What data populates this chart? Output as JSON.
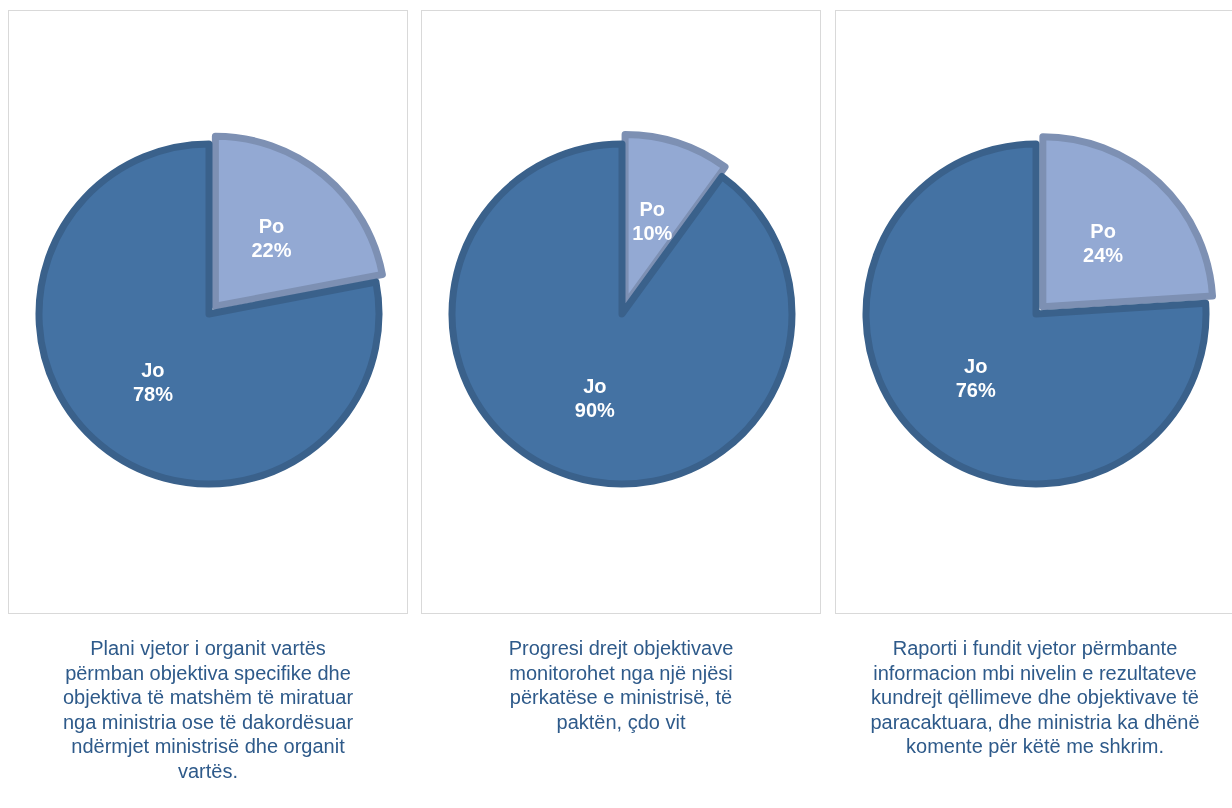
{
  "chart_data": [
    {
      "type": "pie",
      "categories": [
        "Po",
        "Jo"
      ],
      "values": [
        22,
        78
      ],
      "value_labels": [
        "22%",
        "78%"
      ],
      "colors": [
        "#93a9d3",
        "#4472a3"
      ],
      "legend": false,
      "annotations": [
        "Plani vjetor i organit vartës përmban objektiva specifike dhe objektiva të matshëm të miratuar nga ministria ose të dakordësuar ndërmjet ministrisë dhe organit vartës."
      ]
    },
    {
      "type": "pie",
      "categories": [
        "Po",
        "Jo"
      ],
      "values": [
        10,
        90
      ],
      "value_labels": [
        "10%",
        "90%"
      ],
      "colors": [
        "#93a9d3",
        "#4472a3"
      ],
      "legend": false,
      "annotations": [
        "Progresi drejt objektivave monitorohet nga një njësi përkatëse e ministrisë, të paktën, çdo vit"
      ]
    },
    {
      "type": "pie",
      "categories": [
        "Po",
        "Jo"
      ],
      "values": [
        24,
        76
      ],
      "value_labels": [
        "24%",
        "76%"
      ],
      "colors": [
        "#93a9d3",
        "#4472a3"
      ],
      "legend": false,
      "annotations": [
        "Raporti i fundit vjetor përmbante informacion mbi nivelin e rezultateve kundrejt qëllimeve dhe objektivave të paracaktuara, dhe ministria ka dhënë komente për këtë me shkrim."
      ]
    }
  ]
}
